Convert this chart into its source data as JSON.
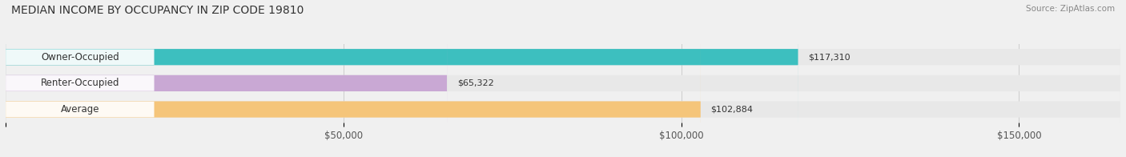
{
  "title": "MEDIAN INCOME BY OCCUPANCY IN ZIP CODE 19810",
  "source": "Source: ZipAtlas.com",
  "categories": [
    "Owner-Occupied",
    "Renter-Occupied",
    "Average"
  ],
  "values": [
    117310,
    65322,
    102884
  ],
  "bar_colors": [
    "#3dbfbf",
    "#c9a8d4",
    "#f5c57a"
  ],
  "bar_labels": [
    "$117,310",
    "$65,322",
    "$102,884"
  ],
  "background_color": "#f0f0f0",
  "bar_bg_color": "#e8e8e8",
  "xlim": [
    0,
    165000
  ],
  "xticks": [
    0,
    50000,
    100000,
    150000
  ],
  "xticklabels": [
    "",
    "$50,000",
    "$100,000",
    "$150,000"
  ]
}
